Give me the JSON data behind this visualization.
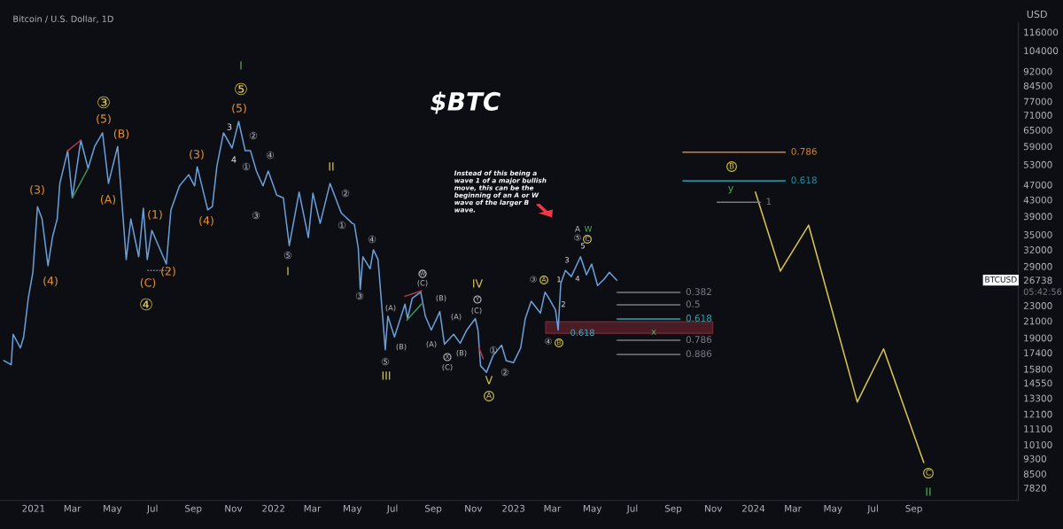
{
  "chart_data": {
    "type": "line",
    "title": "$BTC",
    "subtitle": "Bitcoin / U.S. Dollar, 1D",
    "ylabel": "USD",
    "log": true,
    "grid": false,
    "xlim": [
      "2020-11-11",
      "2025-02-07"
    ],
    "ylim": [
      7260,
      123000
    ],
    "xticks": [
      {
        "value": "2021-01-01",
        "label": "2021"
      },
      {
        "value": "2021-03-01",
        "label": "Mar"
      },
      {
        "value": "2021-05-01",
        "label": "May"
      },
      {
        "value": "2021-07-01",
        "label": "Jul"
      },
      {
        "value": "2021-09-01",
        "label": "Sep"
      },
      {
        "value": "2021-11-01",
        "label": "Nov"
      },
      {
        "value": "2022-01-01",
        "label": "2022"
      },
      {
        "value": "2022-03-01",
        "label": "Mar"
      },
      {
        "value": "2022-05-01",
        "label": "May"
      },
      {
        "value": "2022-07-01",
        "label": "Jul"
      },
      {
        "value": "2022-09-01",
        "label": "Sep"
      },
      {
        "value": "2022-11-01",
        "label": "Nov"
      },
      {
        "value": "2023-01-01",
        "label": "2023"
      },
      {
        "value": "2023-03-01",
        "label": "Mar"
      },
      {
        "value": "2023-05-01",
        "label": "May"
      },
      {
        "value": "2023-07-01",
        "label": "Jul"
      },
      {
        "value": "2023-09-01",
        "label": "Sep"
      },
      {
        "value": "2023-11-01",
        "label": "Nov"
      },
      {
        "value": "2024-01-01",
        "label": "2024"
      },
      {
        "value": "2024-03-01",
        "label": "Mar"
      },
      {
        "value": "2024-05-01",
        "label": "May"
      },
      {
        "value": "2024-07-01",
        "label": "Jul"
      },
      {
        "value": "2024-09-01",
        "label": "Sep"
      }
    ],
    "yticks": [
      116000,
      104000,
      92000,
      84500,
      77000,
      71000,
      65000,
      59000,
      53000,
      47000,
      43000,
      39000,
      35000,
      32000,
      29000,
      26738,
      23000,
      21000,
      19000,
      17400,
      15800,
      14550,
      13300,
      12100,
      11100,
      10100,
      9300,
      8500,
      7820
    ],
    "series": [
      {
        "color": "#6a9fd8",
        "x": [
          "2020-11-17",
          "2020-11-28",
          "2020-12-01",
          "2020-12-12",
          "2020-12-17",
          "2020-12-24",
          "2020-12-31",
          "2021-01-07",
          "2021-01-14",
          "2021-01-23",
          "2021-01-30",
          "2021-02-06",
          "2021-02-10",
          "2021-02-22",
          "2021-03-01",
          "2021-03-14",
          "2021-03-25",
          "2021-04-04",
          "2021-04-16",
          "2021-04-25",
          "2021-05-09",
          "2021-05-22",
          "2021-05-29",
          "2021-06-10",
          "2021-06-17",
          "2021-06-23",
          "2021-06-30",
          "2021-07-22",
          "2021-07-29",
          "2021-08-11",
          "2021-08-25",
          "2021-09-03",
          "2021-09-07",
          "2021-09-23",
          "2021-09-30",
          "2021-10-07",
          "2021-10-17",
          "2021-10-30",
          "2021-11-09",
          "2021-11-19",
          "2021-11-27",
          "2021-12-06",
          "2021-12-16",
          "2021-12-24",
          "2022-01-06",
          "2022-01-16",
          "2022-01-25",
          "2022-02-09",
          "2022-02-23",
          "2022-03-02",
          "2022-03-13",
          "2022-03-28",
          "2022-04-14",
          "2022-05-01",
          "2022-05-04",
          "2022-05-10",
          "2022-05-13",
          "2022-05-17",
          "2022-05-28",
          "2022-06-02",
          "2022-06-09",
          "2022-06-16",
          "2022-06-20",
          "2022-06-24",
          "2022-07-04",
          "2022-07-20",
          "2022-07-24",
          "2022-07-31",
          "2022-08-13",
          "2022-08-20",
          "2022-08-29",
          "2022-09-11",
          "2022-09-18",
          "2022-10-02",
          "2022-10-12",
          "2022-10-22",
          "2022-11-04",
          "2022-11-08",
          "2022-11-12",
          "2022-11-21",
          "2022-12-01",
          "2022-12-14",
          "2022-12-21",
          "2023-01-01",
          "2023-01-12",
          "2023-01-19",
          "2023-01-28",
          "2023-02-11",
          "2023-02-18",
          "2023-02-24",
          "2023-03-06",
          "2023-03-10",
          "2023-03-14",
          "2023-03-21",
          "2023-03-30",
          "2023-04-13",
          "2023-04-22",
          "2023-04-30",
          "2023-05-09",
          "2023-05-19",
          "2023-05-27",
          "2023-06-07"
        ],
        "values": [
          16600,
          16200,
          19400,
          17900,
          19100,
          24000,
          28000,
          41300,
          38400,
          29100,
          34600,
          38400,
          47400,
          57500,
          43500,
          61200,
          51800,
          59000,
          63900,
          47400,
          59000,
          30200,
          38400,
          30700,
          40900,
          30200,
          35900,
          29400,
          40500,
          46700,
          49900,
          46700,
          52300,
          40500,
          41300,
          52600,
          63900,
          58400,
          68400,
          57500,
          57500,
          51000,
          46700,
          51000,
          44200,
          43500,
          32800,
          45000,
          34400,
          44700,
          37400,
          47400,
          39800,
          37400,
          37200,
          32300,
          25300,
          30700,
          28600,
          32000,
          30200,
          21600,
          17700,
          21600,
          19100,
          23200,
          21300,
          24000,
          24900,
          21600,
          19900,
          22200,
          18300,
          19400,
          18400,
          19900,
          21300,
          19900,
          16100,
          15500,
          17100,
          18200,
          16600,
          16400,
          17900,
          21300,
          23600,
          22000,
          24900,
          24000,
          22400,
          19900,
          26200,
          28300,
          27300,
          30700,
          27600,
          29400,
          25900,
          26900,
          28000,
          26738
        ]
      },
      {
        "color": "#d8c84a",
        "x": [
          "2024-01-04",
          "2024-02-11",
          "2024-03-25",
          "2024-06-07",
          "2024-07-17",
          "2024-09-16"
        ],
        "values": [
          45000,
          28200,
          37000,
          13000,
          17800,
          9090
        ]
      },
      {
        "type": "area",
        "color": "#4a1c26",
        "x": [
          "2023-02-19",
          "2023-10-31"
        ],
        "values": [
          null,
          null
        ],
        "lower": [
          19520,
          19520
        ],
        "upper": [
          20900,
          20900
        ]
      },
      {
        "name": "0.382",
        "color": "#787b86",
        "x": [
          "2023-06-08",
          "2023-09-11"
        ],
        "values": [
          24850,
          24850
        ]
      },
      {
        "name": "0.5",
        "color": "#787b86",
        "x": [
          "2023-06-08",
          "2023-09-11"
        ],
        "values": [
          23100,
          23100
        ]
      },
      {
        "name": "0.618",
        "color": "#2aa4b4",
        "x": [
          "2023-06-08",
          "2023-09-11"
        ],
        "values": [
          21250,
          21250
        ]
      },
      {
        "name": "0.786",
        "color": "#787b86",
        "x": [
          "2023-06-08",
          "2023-09-11"
        ],
        "values": [
          18730,
          18730
        ]
      },
      {
        "name": "0.886",
        "color": "#787b86",
        "x": [
          "2023-06-08",
          "2023-09-11"
        ],
        "values": [
          17220,
          17220
        ]
      },
      {
        "name": "0.786",
        "color": "#d9822b",
        "x": [
          "2023-09-16",
          "2024-02-18"
        ],
        "values": [
          57000,
          57000
        ]
      },
      {
        "name": "0.618",
        "color": "#1f8f9e",
        "x": [
          "2023-09-16",
          "2024-02-18"
        ],
        "values": [
          48100,
          48100
        ]
      },
      {
        "name": "1",
        "color": "#787b86",
        "x": [
          "2023-11-07",
          "2024-01-11"
        ],
        "values": [
          42400,
          42400
        ]
      },
      {
        "color": "#b23a4a",
        "x": [
          "2021-02-22",
          "2021-03-14"
        ],
        "values": [
          57500,
          61200
        ]
      },
      {
        "color": "#3f8f4f",
        "x": [
          "2021-03-01",
          "2021-03-25"
        ],
        "values": [
          43500,
          51800
        ]
      },
      {
        "color": "#b23a4a",
        "x": [
          "2022-07-20",
          "2022-08-14"
        ],
        "values": [
          24300,
          25100
        ]
      },
      {
        "color": "#3f8f4f",
        "x": [
          "2022-07-23",
          "2022-08-14"
        ],
        "values": [
          21100,
          23200
        ]
      },
      {
        "color": "#b23a4a",
        "x": [
          "2022-11-09",
          "2022-11-16"
        ],
        "values": [
          18000,
          16800
        ]
      },
      {
        "color": "#787b86",
        "line_style": "dashed",
        "x": [
          "2021-06-23",
          "2021-07-28"
        ],
        "values": [
          28300,
          28300
        ]
      }
    ],
    "annotations": [
      "Instead of this being a\nwave 1 of a major bullish\nmove, this can be the\nbeginning of an A or W\nwave of the larger B\nwave.",
      "BTCUSD",
      "05:42:56",
      "I",
      "⑤",
      "(5)",
      "③",
      "(5)",
      "(B)",
      "(3)",
      "(4)",
      "(A)",
      "(1)",
      "(2)",
      "(C)",
      "④",
      "(3)",
      "(4)",
      "3",
      "4",
      "②",
      "①",
      "④",
      "③",
      "⑤",
      "I",
      "II",
      "②",
      "①",
      "④",
      "③",
      "W",
      "(C)",
      "(A)",
      "(B)",
      "⑤",
      "III",
      "(B)",
      "(A)",
      "(A)",
      "(B)",
      "X",
      "(C)",
      "IV",
      "Y",
      "(C)",
      "①",
      "②",
      "V",
      "A",
      "③",
      "A",
      "④",
      "B",
      "1",
      "2",
      "3",
      "4",
      "5",
      "⑤",
      "C",
      "A",
      "W",
      {
        "text": "0.618",
        "x": "2023-04-16",
        "y": 19520
      },
      "x",
      "y",
      "B",
      "C",
      "II"
    ]
  }
}
